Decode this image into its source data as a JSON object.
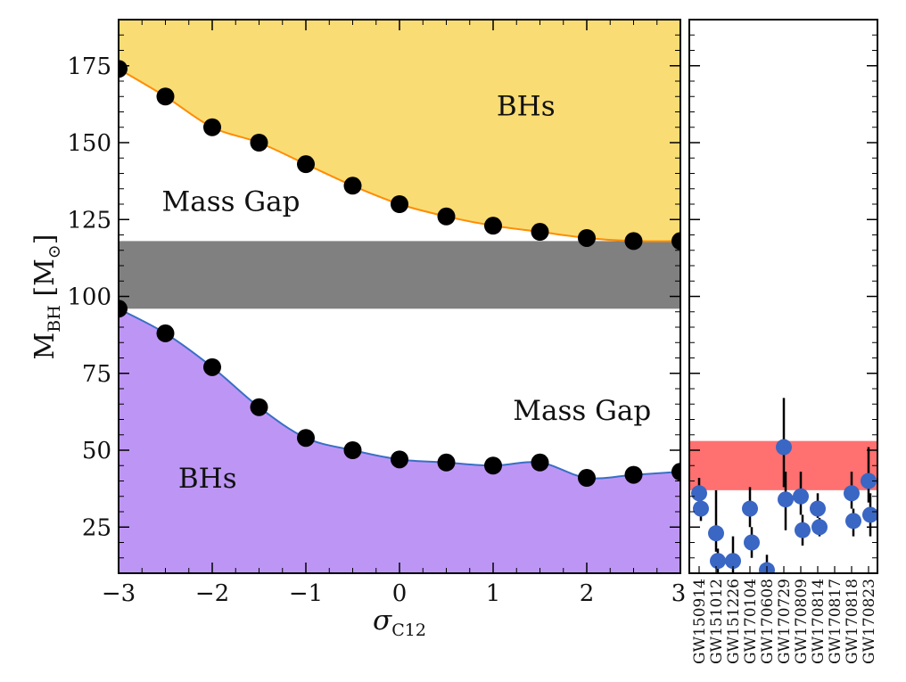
{
  "chart_data": [
    {
      "type": "line",
      "panel": "left",
      "xlabel": "σC12",
      "ylabel": "MBH [M⊙]",
      "xlim": [
        -3,
        3
      ],
      "ylim": [
        10,
        190
      ],
      "xticks": [
        -3,
        -2,
        -1,
        0,
        1,
        2,
        3
      ],
      "xtick_labels": [
        "−3",
        "−2",
        "−1",
        "0",
        "1",
        "2",
        "3"
      ],
      "yticks": [
        25,
        50,
        75,
        100,
        125,
        150,
        175
      ],
      "ytick_labels": [
        "25",
        "50",
        "75",
        "100",
        "125",
        "150",
        "175"
      ],
      "series": [
        {
          "name": "upper mass gap edge",
          "color": "#ff8c00",
          "fill": "#f9dc74",
          "x": [
            -3,
            -2.5,
            -2,
            -1.5,
            -1,
            -0.5,
            0,
            0.5,
            1,
            1.5,
            2,
            2.5,
            3
          ],
          "y": [
            174,
            165,
            155,
            150,
            143,
            136,
            130,
            126,
            123,
            121,
            119,
            118,
            118
          ]
        },
        {
          "name": "lower mass gap edge",
          "color": "#3a6fc4",
          "fill": "#bd96f5",
          "x": [
            -3,
            -2.5,
            -2,
            -1.5,
            -1,
            -0.5,
            0,
            0.5,
            1,
            1.5,
            2,
            2.5,
            3
          ],
          "y": [
            96,
            88,
            77,
            64,
            54,
            50,
            47,
            46,
            45,
            46,
            41,
            42,
            43
          ]
        }
      ],
      "band": {
        "y0": 96,
        "y1": 118,
        "color": "#808080"
      },
      "annotations": [
        {
          "text": "BHs",
          "x": 1.35,
          "y": 162
        },
        {
          "text": "Mass Gap",
          "x": -1.8,
          "y": 131
        },
        {
          "text": "Mass Gap",
          "x": 1.95,
          "y": 63
        },
        {
          "text": "BHs",
          "x": -2.05,
          "y": 41
        }
      ]
    },
    {
      "type": "scatter",
      "panel": "right",
      "ylim": [
        10,
        190
      ],
      "band": {
        "y0": 37,
        "y1": 53,
        "color": "#ff7070"
      },
      "marker_color": "#3a66c4",
      "events": [
        "GW150914",
        "GW151012",
        "GW151226",
        "GW170104",
        "GW170608",
        "GW170729",
        "GW170809",
        "GW170814",
        "GW170817",
        "GW170818",
        "GW170823"
      ],
      "points": [
        {
          "event": "GW150914",
          "mass": 36,
          "err_low": 4,
          "err_high": 5
        },
        {
          "event": "GW150914",
          "mass": 31,
          "err_low": 4,
          "err_high": 3
        },
        {
          "event": "GW151012",
          "mass": 23,
          "err_low": 6,
          "err_high": 14
        },
        {
          "event": "GW151012",
          "mass": 14,
          "err_low": 4,
          "err_high": 4
        },
        {
          "event": "GW151226",
          "mass": 14,
          "err_low": 4,
          "err_high": 8
        },
        {
          "event": "GW170104",
          "mass": 31,
          "err_low": 6,
          "err_high": 7
        },
        {
          "event": "GW170104",
          "mass": 20,
          "err_low": 5,
          "err_high": 5
        },
        {
          "event": "GW170608",
          "mass": 11,
          "err_low": 2,
          "err_high": 5
        },
        {
          "event": "GW170729",
          "mass": 51,
          "err_low": 13,
          "err_high": 16
        },
        {
          "event": "GW170729",
          "mass": 34,
          "err_low": 10,
          "err_high": 9
        },
        {
          "event": "GW170809",
          "mass": 35,
          "err_low": 6,
          "err_high": 8
        },
        {
          "event": "GW170809",
          "mass": 24,
          "err_low": 5,
          "err_high": 5
        },
        {
          "event": "GW170814",
          "mass": 31,
          "err_low": 3,
          "err_high": 5
        },
        {
          "event": "GW170814",
          "mass": 25,
          "err_low": 3,
          "err_high": 3
        },
        {
          "event": "GW170818",
          "mass": 36,
          "err_low": 5,
          "err_high": 7
        },
        {
          "event": "GW170818",
          "mass": 27,
          "err_low": 5,
          "err_high": 4
        },
        {
          "event": "GW170823",
          "mass": 40,
          "err_low": 7,
          "err_high": 11
        },
        {
          "event": "GW170823",
          "mass": 29,
          "err_low": 7,
          "err_high": 7
        }
      ]
    }
  ]
}
